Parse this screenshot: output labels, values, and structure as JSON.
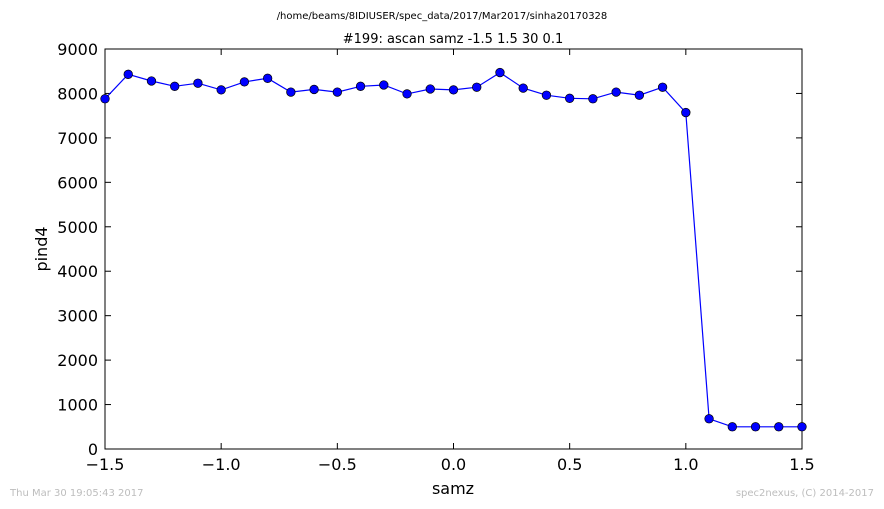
{
  "suptitle": "/home/beams/8IDIUSER/spec_data/2017/Mar2017/sinha20170328",
  "footer": {
    "timestamp": "Thu Mar 30 19:05:43 2017",
    "credit": "spec2nexus, (C) 2014-2017"
  },
  "chart_data": {
    "type": "line",
    "title": "#199: ascan  samz -1.5 1.5  30 0.1",
    "xlabel": "samz",
    "ylabel": "pind4",
    "xlim": [
      -1.5,
      1.5
    ],
    "ylim": [
      0,
      9000
    ],
    "xticks": [
      -1.5,
      -1.0,
      -0.5,
      0.0,
      0.5,
      1.0,
      1.5
    ],
    "xtick_labels": [
      "−1.5",
      "−1.0",
      "−0.5",
      "0.0",
      "0.5",
      "1.0",
      "1.5"
    ],
    "yticks": [
      0,
      1000,
      2000,
      3000,
      4000,
      5000,
      6000,
      7000,
      8000,
      9000
    ],
    "ytick_labels": [
      "0",
      "1000",
      "2000",
      "3000",
      "4000",
      "5000",
      "6000",
      "7000",
      "8000",
      "9000"
    ],
    "grid": false,
    "color": "#0000ff",
    "x": [
      -1.5,
      -1.4,
      -1.3,
      -1.2,
      -1.1,
      -1.0,
      -0.9,
      -0.8,
      -0.7,
      -0.6,
      -0.5,
      -0.4,
      -0.3,
      -0.2,
      -0.1,
      0.0,
      0.1,
      0.2,
      0.3,
      0.4,
      0.5,
      0.6,
      0.7,
      0.8,
      0.9,
      1.0,
      1.1,
      1.2,
      1.3,
      1.4,
      1.5
    ],
    "y": [
      7880,
      8430,
      8280,
      8160,
      8230,
      8080,
      8260,
      8340,
      8030,
      8090,
      8030,
      8160,
      8190,
      7990,
      8100,
      8080,
      8140,
      8470,
      8120,
      7960,
      7890,
      7880,
      8030,
      7960,
      8140,
      7570,
      680,
      500,
      500,
      500,
      500
    ]
  }
}
